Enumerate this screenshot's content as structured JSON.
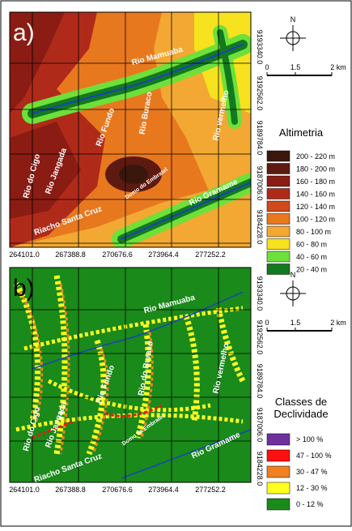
{
  "panels": [
    {
      "label": "a)",
      "rivers": [
        "Rio Mamuaba",
        "Rio Buraco",
        "Rio vermelho",
        "Rio Fundo",
        "Rio Jangada",
        "Rio do Cigo",
        "Riacho Santa Cruz",
        "Domo do Embratel",
        "Rio Gramame"
      ],
      "legend": {
        "title": [
          "Altimetria"
        ],
        "items": [
          {
            "label": "200 - 220 m",
            "color": "#3a170c"
          },
          {
            "label": "180 - 200 m",
            "color": "#5e1a10"
          },
          {
            "label": "160 - 180 m",
            "color": "#8a1c14"
          },
          {
            "label": "140 - 160 m",
            "color": "#b02a1a"
          },
          {
            "label": "120 - 140 m",
            "color": "#d04a1c"
          },
          {
            "label": "100 - 120 m",
            "color": "#e8781e"
          },
          {
            "label": "80 - 100 m",
            "color": "#f2a832"
          },
          {
            "label": "60 - 80 m",
            "color": "#f6e21e"
          },
          {
            "label": "40 - 60 m",
            "color": "#6ee03a"
          },
          {
            "label": "20 - 40 m",
            "color": "#127a1e"
          }
        ]
      }
    },
    {
      "label": "b)",
      "rivers": [
        "Rio Mamuaba",
        "Rio do Buraco",
        "Rio vermelho",
        "Rio Fundo",
        "Rio Jangada",
        "Rio do Cigo",
        "Riacho Santa Cruz",
        "Domo da Embratel",
        "Rio Gramame"
      ],
      "legend": {
        "title": [
          "Classes de",
          "Declividade"
        ],
        "items": [
          {
            "label": "> 100 %",
            "color": "#7030a0"
          },
          {
            "label": "47 - 100 %",
            "color": "#ff1010"
          },
          {
            "label": "30 - 47 %",
            "color": "#f08020"
          },
          {
            "label": "12 - 30 %",
            "color": "#ffff20"
          },
          {
            "label": "0 -  12 %",
            "color": "#1a8a1a"
          }
        ]
      }
    }
  ],
  "north": "N",
  "scale": [
    "0",
    "1.5",
    "2 km"
  ],
  "x_coords": [
    "264101.0",
    "267388.8",
    "270676.6",
    "273964.4",
    "277252.2"
  ],
  "y_coords": [
    "9193340.0",
    "9192562.0",
    "9189784.0",
    "9187006.0",
    "9184228.0"
  ]
}
